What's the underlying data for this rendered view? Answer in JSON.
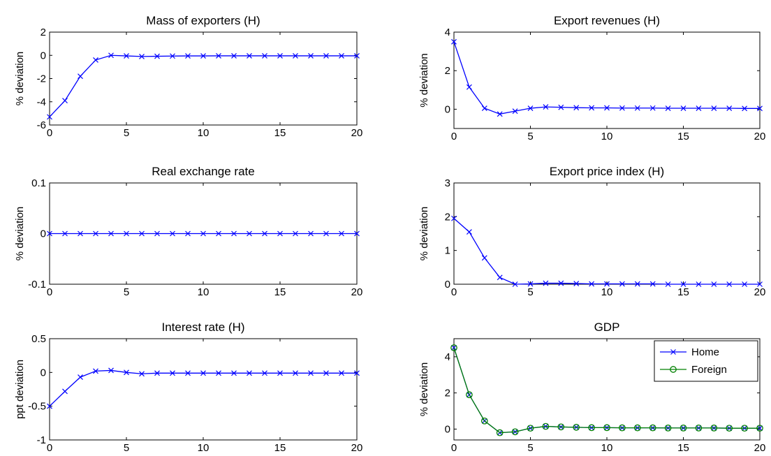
{
  "chart_data": [
    {
      "type": "line",
      "title": "Mass of exporters (H)",
      "ylabel": "% deviation",
      "xlim": [
        0,
        20
      ],
      "ylim": [
        -6,
        2
      ],
      "xticks": [
        0,
        5,
        10,
        15,
        20
      ],
      "yticks": [
        -6,
        -4,
        -2,
        0,
        2
      ],
      "ytick_labels": [
        "-6",
        "-4",
        "-2",
        "0",
        "2"
      ],
      "x": [
        0,
        1,
        2,
        3,
        4,
        5,
        6,
        7,
        8,
        9,
        10,
        11,
        12,
        13,
        14,
        15,
        16,
        17,
        18,
        19,
        20
      ],
      "series": [
        {
          "color": "#0000ff",
          "marker": "x",
          "values": [
            -5.3,
            -3.9,
            -1.8,
            -0.4,
            0.0,
            -0.05,
            -0.1,
            -0.08,
            -0.06,
            -0.05,
            -0.05,
            -0.04,
            -0.04,
            -0.04,
            -0.04,
            -0.04,
            -0.04,
            -0.04,
            -0.04,
            -0.04,
            -0.04
          ]
        }
      ]
    },
    {
      "type": "line",
      "title": "Export revenues (H)",
      "ylabel": "% deviation",
      "xlim": [
        0,
        20
      ],
      "ylim": [
        -1,
        4
      ],
      "xticks": [
        0,
        5,
        10,
        15,
        20
      ],
      "yticks": [
        0,
        2,
        4
      ],
      "ytick_labels": [
        "0",
        "2",
        "4"
      ],
      "x": [
        0,
        1,
        2,
        3,
        4,
        5,
        6,
        7,
        8,
        9,
        10,
        11,
        12,
        13,
        14,
        15,
        16,
        17,
        18,
        19,
        20
      ],
      "series": [
        {
          "color": "#0000ff",
          "marker": "x",
          "values": [
            3.5,
            1.15,
            0.05,
            -0.25,
            -0.1,
            0.05,
            0.12,
            0.1,
            0.08,
            0.07,
            0.07,
            0.06,
            0.06,
            0.06,
            0.05,
            0.05,
            0.05,
            0.05,
            0.05,
            0.04,
            0.04
          ]
        }
      ]
    },
    {
      "type": "line",
      "title": "Real exchange rate",
      "ylabel": "% deviation",
      "xlim": [
        0,
        20
      ],
      "ylim": [
        -0.1,
        0.1
      ],
      "xticks": [
        0,
        5,
        10,
        15,
        20
      ],
      "yticks": [
        -0.1,
        0,
        0.1
      ],
      "ytick_labels": [
        "-0.1",
        "0",
        "0.1"
      ],
      "x": [
        0,
        1,
        2,
        3,
        4,
        5,
        6,
        7,
        8,
        9,
        10,
        11,
        12,
        13,
        14,
        15,
        16,
        17,
        18,
        19,
        20
      ],
      "series": [
        {
          "color": "#0000ff",
          "marker": "x",
          "values": [
            0,
            0,
            0,
            0,
            0,
            0,
            0,
            0,
            0,
            0,
            0,
            0,
            0,
            0,
            0,
            0,
            0,
            0,
            0,
            0,
            0
          ]
        }
      ]
    },
    {
      "type": "line",
      "title": "Export price index (H)",
      "ylabel": "% deviation",
      "xlim": [
        0,
        20
      ],
      "ylim": [
        0,
        3
      ],
      "xticks": [
        0,
        5,
        10,
        15,
        20
      ],
      "yticks": [
        0,
        1,
        2,
        3
      ],
      "ytick_labels": [
        "0",
        "1",
        "2",
        "3"
      ],
      "x": [
        0,
        1,
        2,
        3,
        4,
        5,
        6,
        7,
        8,
        9,
        10,
        11,
        12,
        13,
        14,
        15,
        16,
        17,
        18,
        19,
        20
      ],
      "series": [
        {
          "color": "#0000ff",
          "marker": "x",
          "values": [
            1.95,
            1.55,
            0.78,
            0.2,
            0.0,
            0.01,
            0.03,
            0.03,
            0.02,
            0.01,
            0.01,
            0.01,
            0.01,
            0.01,
            0.0,
            0.0,
            0.0,
            0.0,
            0.0,
            0.0,
            0.0
          ]
        }
      ]
    },
    {
      "type": "line",
      "title": "Interest rate (H)",
      "ylabel": "ppt deviation",
      "xlim": [
        0,
        20
      ],
      "ylim": [
        -1,
        0.5
      ],
      "xticks": [
        0,
        5,
        10,
        15,
        20
      ],
      "yticks": [
        -1,
        -0.5,
        0,
        0.5
      ],
      "ytick_labels": [
        "-1",
        "-0.5",
        "0",
        "0.5"
      ],
      "x": [
        0,
        1,
        2,
        3,
        4,
        5,
        6,
        7,
        8,
        9,
        10,
        11,
        12,
        13,
        14,
        15,
        16,
        17,
        18,
        19,
        20
      ],
      "series": [
        {
          "color": "#0000ff",
          "marker": "x",
          "values": [
            -0.5,
            -0.28,
            -0.07,
            0.02,
            0.03,
            0.0,
            -0.02,
            -0.01,
            -0.01,
            -0.01,
            -0.01,
            -0.01,
            -0.01,
            -0.01,
            -0.01,
            -0.01,
            -0.01,
            -0.01,
            -0.01,
            -0.01,
            -0.01
          ]
        }
      ]
    },
    {
      "type": "line",
      "title": "GDP",
      "ylabel": "% deviation",
      "xlim": [
        0,
        20
      ],
      "ylim": [
        -0.6,
        5
      ],
      "xticks": [
        0,
        5,
        10,
        15,
        20
      ],
      "yticks": [
        0,
        2,
        4
      ],
      "ytick_labels": [
        "0",
        "2",
        "4"
      ],
      "legend": "top-right",
      "x": [
        0,
        1,
        2,
        3,
        4,
        5,
        6,
        7,
        8,
        9,
        10,
        11,
        12,
        13,
        14,
        15,
        16,
        17,
        18,
        19,
        20
      ],
      "series": [
        {
          "name": "Home",
          "color": "#0000ff",
          "marker": "x",
          "values": [
            4.5,
            1.9,
            0.45,
            -0.2,
            -0.15,
            0.05,
            0.15,
            0.12,
            0.1,
            0.08,
            0.08,
            0.07,
            0.07,
            0.07,
            0.06,
            0.06,
            0.06,
            0.06,
            0.05,
            0.05,
            0.05
          ]
        },
        {
          "name": "Foreign",
          "color": "#008000",
          "marker": "o",
          "values": [
            4.5,
            1.9,
            0.45,
            -0.2,
            -0.15,
            0.05,
            0.15,
            0.12,
            0.1,
            0.08,
            0.08,
            0.07,
            0.07,
            0.07,
            0.06,
            0.06,
            0.06,
            0.06,
            0.05,
            0.05,
            0.05
          ]
        }
      ]
    }
  ]
}
